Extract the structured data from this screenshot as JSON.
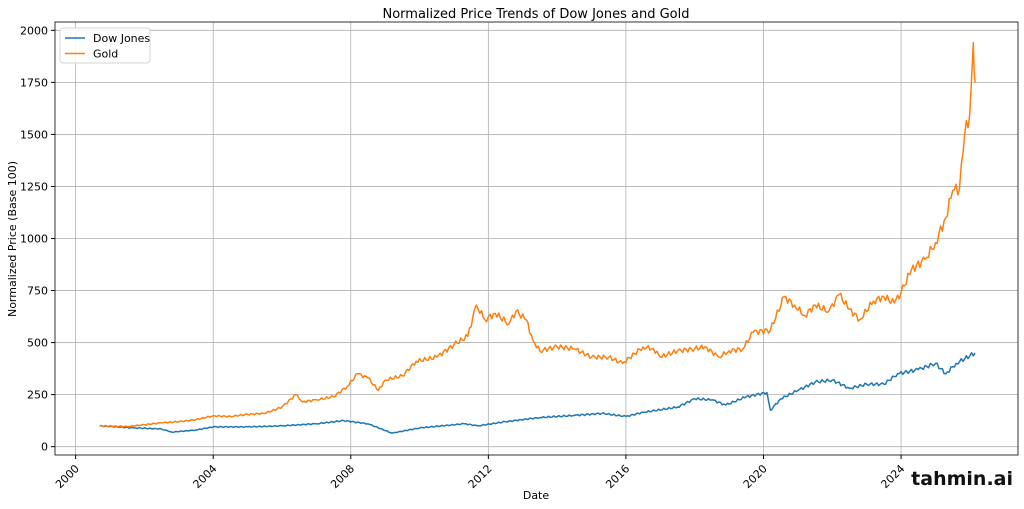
{
  "chart_data": {
    "type": "line",
    "title": "Normalized Price Trends of Dow Jones and Gold",
    "xlabel": "Date",
    "ylabel": "Normalized Price (Base 100)",
    "xlim": [
      1999.4,
      2027.4
    ],
    "ylim": [
      -40,
      2040
    ],
    "x_ticks": [
      2000,
      2004,
      2008,
      2012,
      2016,
      2020,
      2024
    ],
    "x_tick_labels": [
      "2000",
      "2004",
      "2008",
      "2012",
      "2016",
      "2020",
      "2024"
    ],
    "y_ticks": [
      0,
      250,
      500,
      750,
      1000,
      1250,
      1500,
      1750,
      2000
    ],
    "y_tick_labels": [
      "0",
      "250",
      "500",
      "750",
      "1000",
      "1250",
      "1500",
      "1750",
      "2000"
    ],
    "grid": true,
    "legend_position": "top-left",
    "series": [
      {
        "name": "Dow Jones",
        "color": "#1f77b4",
        "x": [
          2000.7,
          2001.7,
          2002.5,
          2002.8,
          2003.5,
          2004,
          2005,
          2006,
          2007,
          2007.8,
          2008.5,
          2009.2,
          2010,
          2011.3,
          2011.7,
          2012.5,
          2013.5,
          2014.5,
          2015.3,
          2016,
          2016.5,
          2017.5,
          2018,
          2018.5,
          2018.9,
          2019.5,
          2020.1,
          2020.2,
          2020.5,
          2021,
          2021.5,
          2022,
          2022.5,
          2023,
          2023.5,
          2023.9,
          2024.5,
          2025,
          2025.3,
          2025.6,
          2026.15
        ],
        "y": [
          100,
          90,
          85,
          70,
          80,
          95,
          95,
          100,
          110,
          125,
          110,
          65,
          90,
          110,
          100,
          120,
          140,
          150,
          160,
          145,
          165,
          190,
          230,
          225,
          200,
          240,
          260,
          175,
          230,
          270,
          310,
          320,
          280,
          300,
          300,
          350,
          370,
          400,
          350,
          400,
          450
        ]
      },
      {
        "name": "Gold",
        "color": "#ff7f0e",
        "x": [
          2000.7,
          2001.5,
          2002,
          2002.5,
          2003,
          2003.5,
          2004,
          2004.5,
          2005,
          2005.5,
          2006,
          2006.4,
          2006.6,
          2007,
          2007.5,
          2007.9,
          2008.2,
          2008.5,
          2008.8,
          2009,
          2009.5,
          2009.9,
          2010.5,
          2011,
          2011.4,
          2011.65,
          2011.9,
          2012.2,
          2012.6,
          2012.8,
          2013.1,
          2013.3,
          2013.5,
          2014,
          2014.5,
          2015,
          2015.5,
          2015.9,
          2016.5,
          2016.8,
          2017,
          2017.5,
          2018,
          2018.3,
          2018.7,
          2019,
          2019.4,
          2019.7,
          2020.2,
          2020.6,
          2020.9,
          2021.2,
          2021.5,
          2021.9,
          2022.2,
          2022.5,
          2022.8,
          2023.2,
          2023.5,
          2023.8,
          2024,
          2024.3,
          2024.7,
          2025,
          2025.3,
          2025.5,
          2025.7,
          2025.85,
          2026.0,
          2026.1,
          2026.15
        ],
        "y": [
          100,
          97,
          105,
          115,
          120,
          130,
          148,
          145,
          155,
          160,
          190,
          250,
          215,
          225,
          240,
          290,
          350,
          330,
          270,
          320,
          340,
          410,
          430,
          490,
          530,
          680,
          610,
          640,
          590,
          650,
          610,
          510,
          460,
          480,
          470,
          430,
          430,
          400,
          480,
          470,
          430,
          460,
          470,
          480,
          430,
          460,
          470,
          550,
          560,
          720,
          680,
          630,
          680,
          650,
          730,
          660,
          610,
          700,
          720,
          690,
          740,
          850,
          900,
          980,
          1100,
          1230,
          1240,
          1500,
          1600,
          1940,
          1750
        ]
      }
    ]
  },
  "watermark": "tahmin.ai"
}
